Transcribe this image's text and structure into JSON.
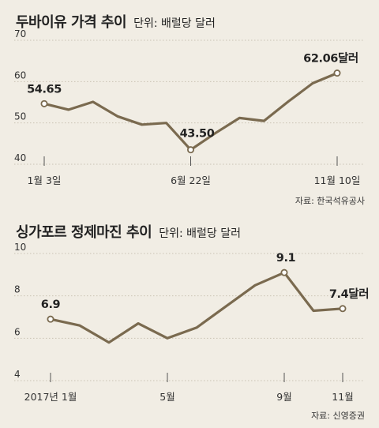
{
  "chart_data": [
    {
      "type": "line",
      "title": "두바이유 가격 추이",
      "unit": "단위: 배럴당 달러",
      "source": "자료: 한국석유공사",
      "ylim": [
        40,
        70
      ],
      "yticks": [
        "40",
        "50",
        "60",
        "70"
      ],
      "xtick_labels": [
        "1월 3일",
        "6월 22일",
        "11월 10일"
      ],
      "grid": true,
      "color": "#7a6a4f",
      "values": [
        54.65,
        53.2,
        55.1,
        51.6,
        49.6,
        50.0,
        43.5,
        47.5,
        51.2,
        50.5,
        55.2,
        59.6,
        62.06
      ],
      "x_positions": [
        0,
        1,
        2,
        3,
        4,
        5,
        6,
        7,
        8,
        9,
        10,
        11,
        12
      ],
      "xtick_index": [
        0,
        6,
        12
      ],
      "highlight": [
        {
          "index": 0,
          "label": "54.65"
        },
        {
          "index": 6,
          "label": "43.50"
        },
        {
          "index": 12,
          "label": "62.06달러"
        }
      ]
    },
    {
      "type": "line",
      "title": "싱가포르 정제마진 추이",
      "unit": "단위: 배럴당 달러",
      "source": "자료: 신영증권",
      "ylim": [
        4,
        10
      ],
      "yticks": [
        "4",
        "6",
        "8",
        "10"
      ],
      "xtick_labels": [
        "2017년 1월",
        "5월",
        "9월",
        "11월"
      ],
      "grid": true,
      "color": "#7a6a4f",
      "values": [
        6.9,
        6.6,
        5.8,
        6.7,
        6.0,
        6.5,
        7.5,
        8.5,
        9.1,
        7.3,
        7.4
      ],
      "x_positions": [
        0,
        1,
        2,
        3,
        4,
        5,
        6,
        7,
        8,
        9,
        10
      ],
      "xtick_index": [
        0,
        4,
        8,
        10
      ],
      "highlight": [
        {
          "index": 0,
          "label": "6.9"
        },
        {
          "index": 8,
          "label": "9.1"
        },
        {
          "index": 10,
          "label": "7.4달러"
        }
      ]
    }
  ]
}
